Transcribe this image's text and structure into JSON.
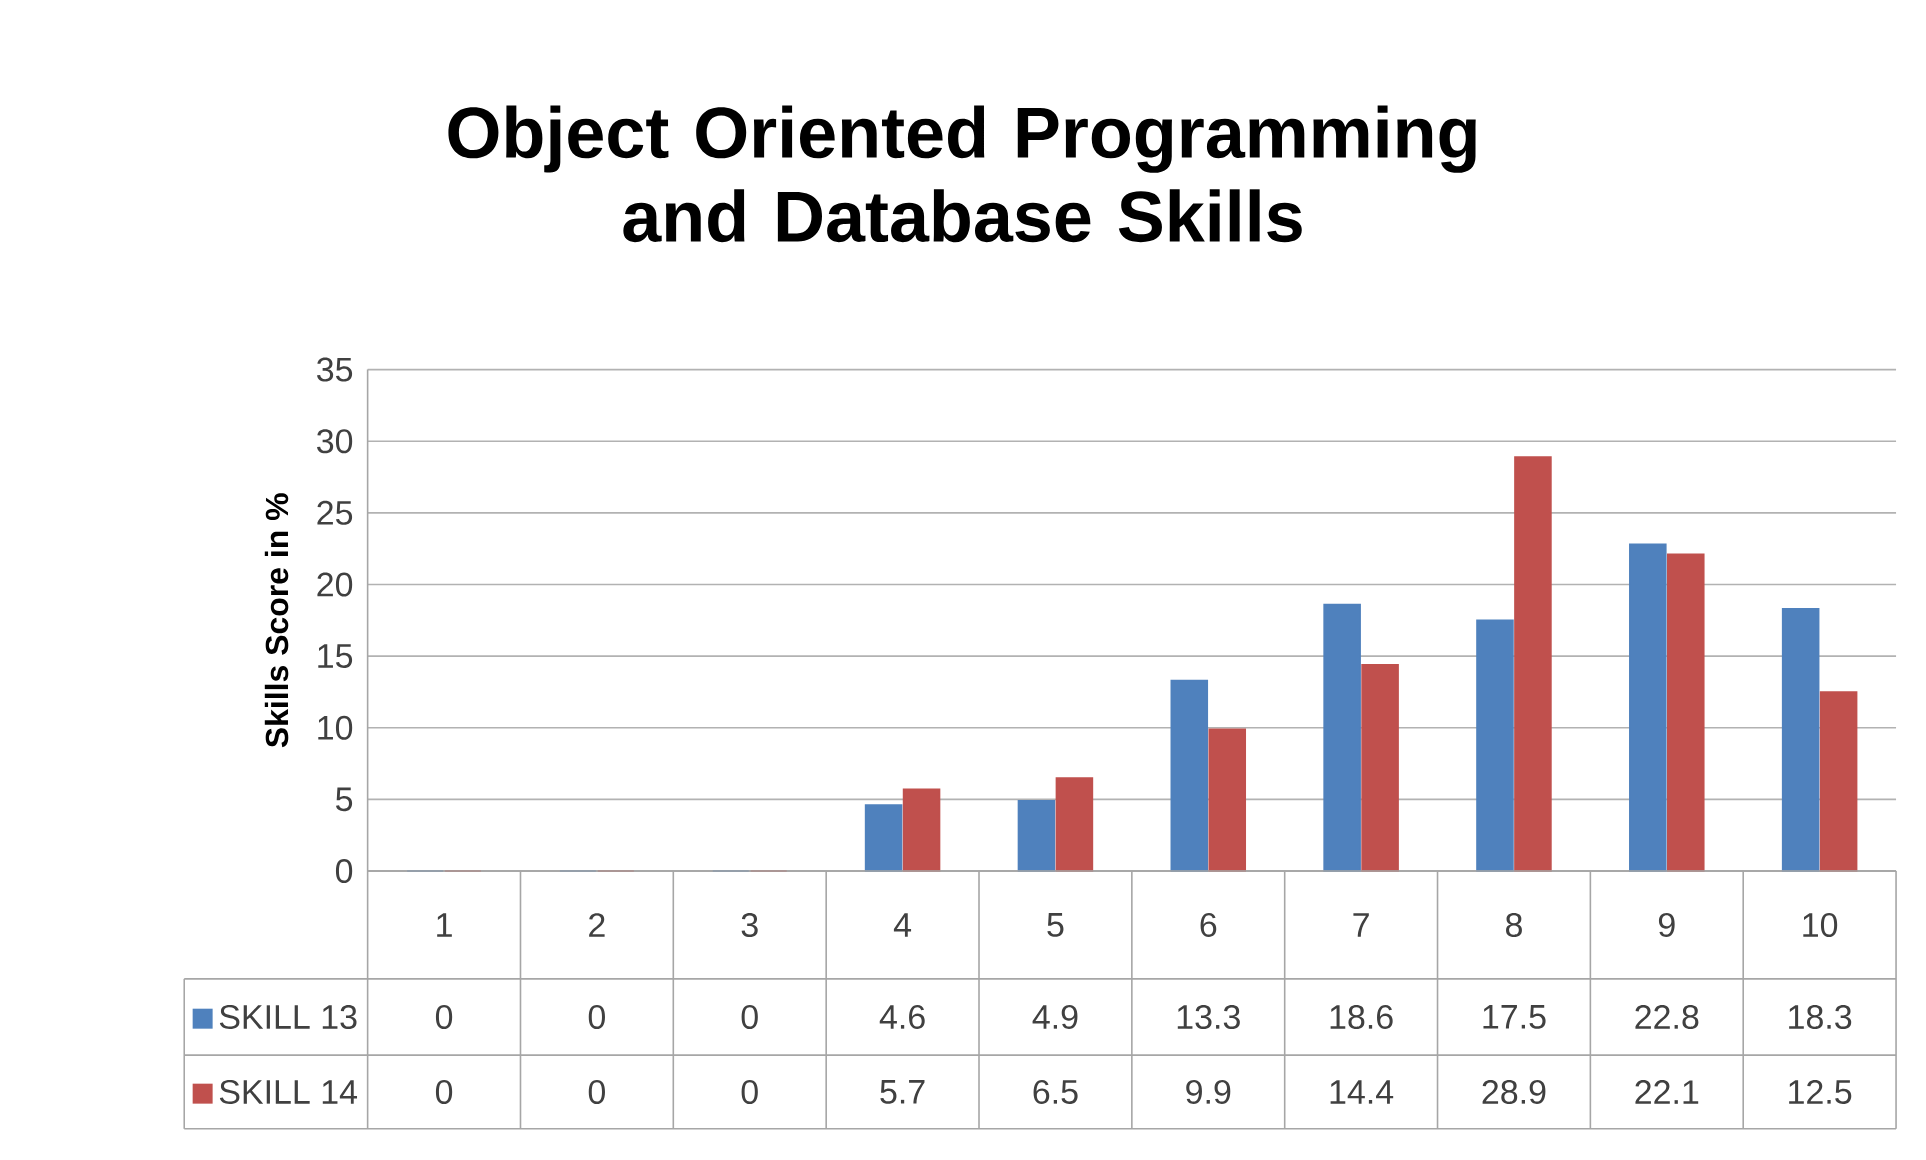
{
  "chart_data": {
    "type": "bar",
    "title": "Object Oriented Programming and Database Skills",
    "ylabel": "Skills Score in %",
    "categories": [
      "1",
      "2",
      "3",
      "4",
      "5",
      "6",
      "7",
      "8",
      "9",
      "10"
    ],
    "series": [
      {
        "name": "SKILL 13",
        "color": "#4f81bd",
        "values": [
          0,
          0,
          0,
          4.6,
          4.9,
          13.3,
          18.6,
          17.5,
          22.8,
          18.3
        ]
      },
      {
        "name": "SKILL 14",
        "color": "#c0504d",
        "values": [
          0,
          0,
          0,
          5.7,
          6.5,
          9.9,
          14.4,
          28.9,
          22.1,
          12.5
        ]
      }
    ],
    "ylim": [
      0,
      35
    ],
    "yticks": [
      0,
      5,
      10,
      15,
      20,
      25,
      30,
      35
    ],
    "grid": "y",
    "legend": "bottom",
    "data_labels": true
  }
}
